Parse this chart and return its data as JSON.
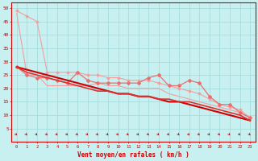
{
  "background_color": "#c8f0f0",
  "grid_color": "#a0d8d8",
  "xlabel": "Vent moyen/en rafales ( km/h )",
  "xlabel_color": "#cc0000",
  "tick_color": "#cc0000",
  "axis_color": "#cc0000",
  "xlim": [
    -0.5,
    23.5
  ],
  "ylim": [
    0,
    52
  ],
  "yticks": [
    5,
    10,
    15,
    20,
    25,
    30,
    35,
    40,
    45,
    50
  ],
  "xticks": [
    0,
    1,
    2,
    3,
    4,
    5,
    6,
    7,
    8,
    9,
    10,
    11,
    12,
    13,
    14,
    15,
    16,
    17,
    18,
    19,
    20,
    21,
    22,
    23
  ],
  "lines": [
    {
      "x": [
        0,
        1,
        2,
        3,
        4,
        5,
        6,
        7,
        8,
        9,
        10,
        11,
        12,
        13,
        14,
        15,
        16,
        17,
        18,
        19,
        20,
        21,
        22,
        23
      ],
      "y": [
        48,
        25,
        25,
        21,
        21,
        21,
        21,
        21,
        22,
        21,
        21,
        20,
        20,
        20,
        20,
        18,
        17,
        16,
        15,
        14,
        13,
        12,
        11,
        9
      ],
      "color": "#f0a0a0",
      "lw": 0.8,
      "marker": null
    },
    {
      "x": [
        0,
        1,
        2,
        3,
        4,
        5,
        6,
        7,
        8,
        9,
        10,
        11,
        12,
        13,
        14,
        15,
        16,
        17,
        18,
        19,
        20,
        21,
        22,
        23
      ],
      "y": [
        49,
        47,
        45,
        26,
        26,
        26,
        26,
        25,
        25,
        24,
        24,
        23,
        23,
        23,
        22,
        21,
        20,
        19,
        18,
        16,
        14,
        13,
        12,
        9
      ],
      "color": "#f0a0a0",
      "lw": 0.8,
      "marker": "D",
      "ms": 1.5
    },
    {
      "x": [
        0,
        1,
        2,
        3,
        4,
        5,
        6,
        7,
        8,
        9,
        10,
        11,
        12,
        13,
        14,
        15,
        16,
        17,
        18,
        19,
        20,
        21,
        22,
        23
      ],
      "y": [
        28,
        25,
        24,
        24,
        23,
        22,
        26,
        23,
        22,
        22,
        22,
        22,
        22,
        24,
        25,
        21,
        21,
        23,
        22,
        17,
        14,
        14,
        11,
        9
      ],
      "color": "#e87070",
      "lw": 0.9,
      "marker": "D",
      "ms": 2.0
    },
    {
      "x": [
        0,
        1,
        2,
        3,
        4,
        5,
        6,
        7,
        8,
        9,
        10,
        11,
        12,
        13,
        14,
        15,
        16,
        17,
        18,
        19,
        20,
        21,
        22,
        23
      ],
      "y": [
        28,
        27,
        26,
        25,
        24,
        23,
        22,
        21,
        20,
        19,
        18,
        18,
        17,
        17,
        16,
        15,
        15,
        14,
        13,
        12,
        11,
        10,
        9,
        8
      ],
      "color": "#cc0000",
      "lw": 1.5,
      "marker": null
    },
    {
      "x": [
        0,
        1,
        2,
        3,
        4,
        5,
        6,
        7,
        8,
        9,
        10,
        11,
        12,
        13,
        14,
        15,
        16,
        17,
        18,
        19,
        20,
        21,
        22,
        23
      ],
      "y": [
        28,
        26,
        25,
        24,
        23,
        22,
        21,
        20,
        19,
        19,
        18,
        18,
        17,
        17,
        16,
        16,
        15,
        15,
        14,
        13,
        12,
        11,
        10,
        8
      ],
      "color": "#e03030",
      "lw": 1.2,
      "marker": null
    }
  ]
}
